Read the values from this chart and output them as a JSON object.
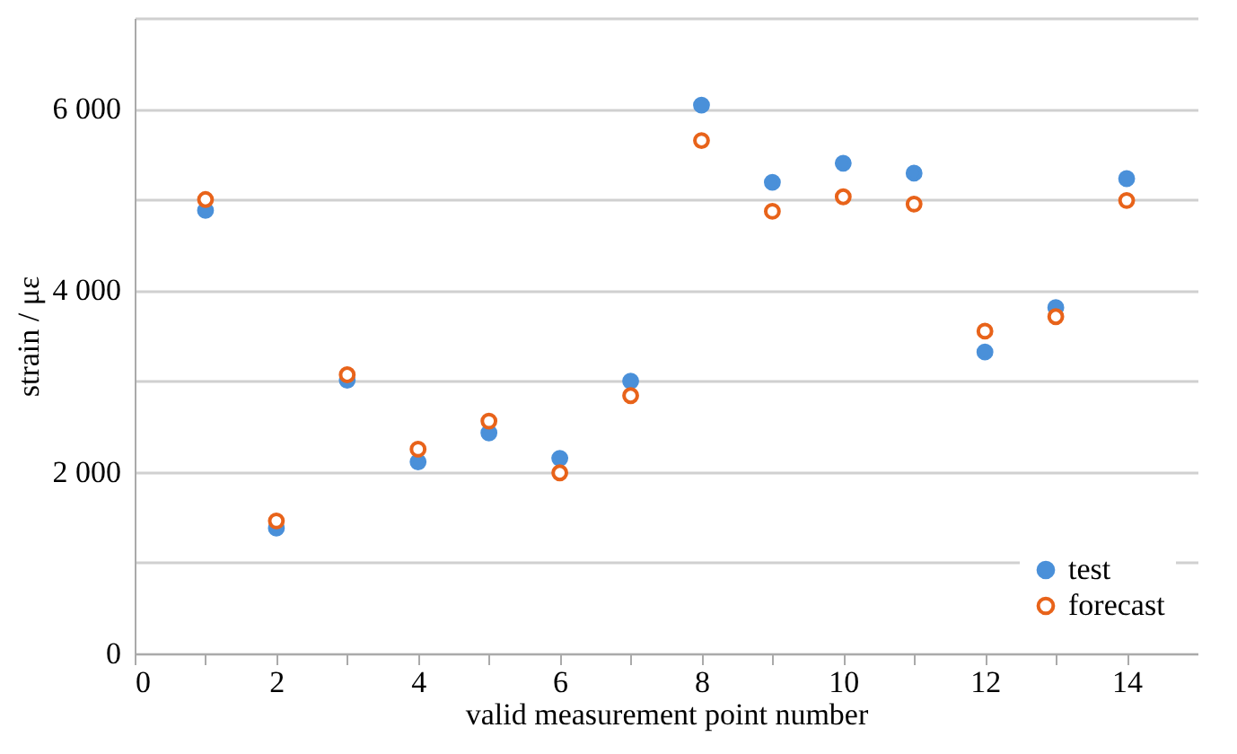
{
  "chart_data": {
    "type": "scatter",
    "xlabel": "valid measurement point number",
    "ylabel": "strain / με",
    "x": [
      1,
      2,
      3,
      4,
      5,
      6,
      7,
      8,
      9,
      10,
      11,
      12,
      13,
      14
    ],
    "series": [
      {
        "name": "test",
        "color": "#4a90d9",
        "values": [
          4880,
          1380,
          3010,
          2110,
          2430,
          2150,
          3000,
          6040,
          5190,
          5400,
          5290,
          3320,
          3810,
          5230
        ]
      },
      {
        "name": "forecast",
        "color": "#e8631a",
        "values": [
          5000,
          1460,
          3070,
          2250,
          2560,
          1990,
          2840,
          5650,
          4870,
          5030,
          4950,
          3550,
          3710,
          4990
        ]
      }
    ],
    "xlim": [
      0,
      15
    ],
    "xticks": [
      0,
      {
        "value": 1,
        "label": null
      },
      2,
      {
        "value": 3,
        "label": null
      },
      4,
      {
        "value": 5,
        "label": null
      },
      6,
      {
        "value": 7,
        "label": null
      },
      8,
      {
        "value": 9,
        "label": null
      },
      10,
      {
        "value": 11,
        "label": null
      },
      12,
      {
        "value": 13,
        "label": null
      },
      14
    ],
    "ylim": [
      0,
      7000
    ],
    "yticks": [
      {
        "value": 0,
        "label": "0"
      },
      {
        "value": 1000,
        "label": null
      },
      {
        "value": 2000,
        "label": "2 000"
      },
      {
        "value": 3000,
        "label": null
      },
      {
        "value": 4000,
        "label": "4 000"
      },
      {
        "value": 5000,
        "label": null
      },
      {
        "value": 6000,
        "label": "6 000"
      },
      {
        "value": 7000,
        "label": null
      }
    ],
    "grid": "y",
    "legend": "bottom right",
    "marker": "circle"
  }
}
